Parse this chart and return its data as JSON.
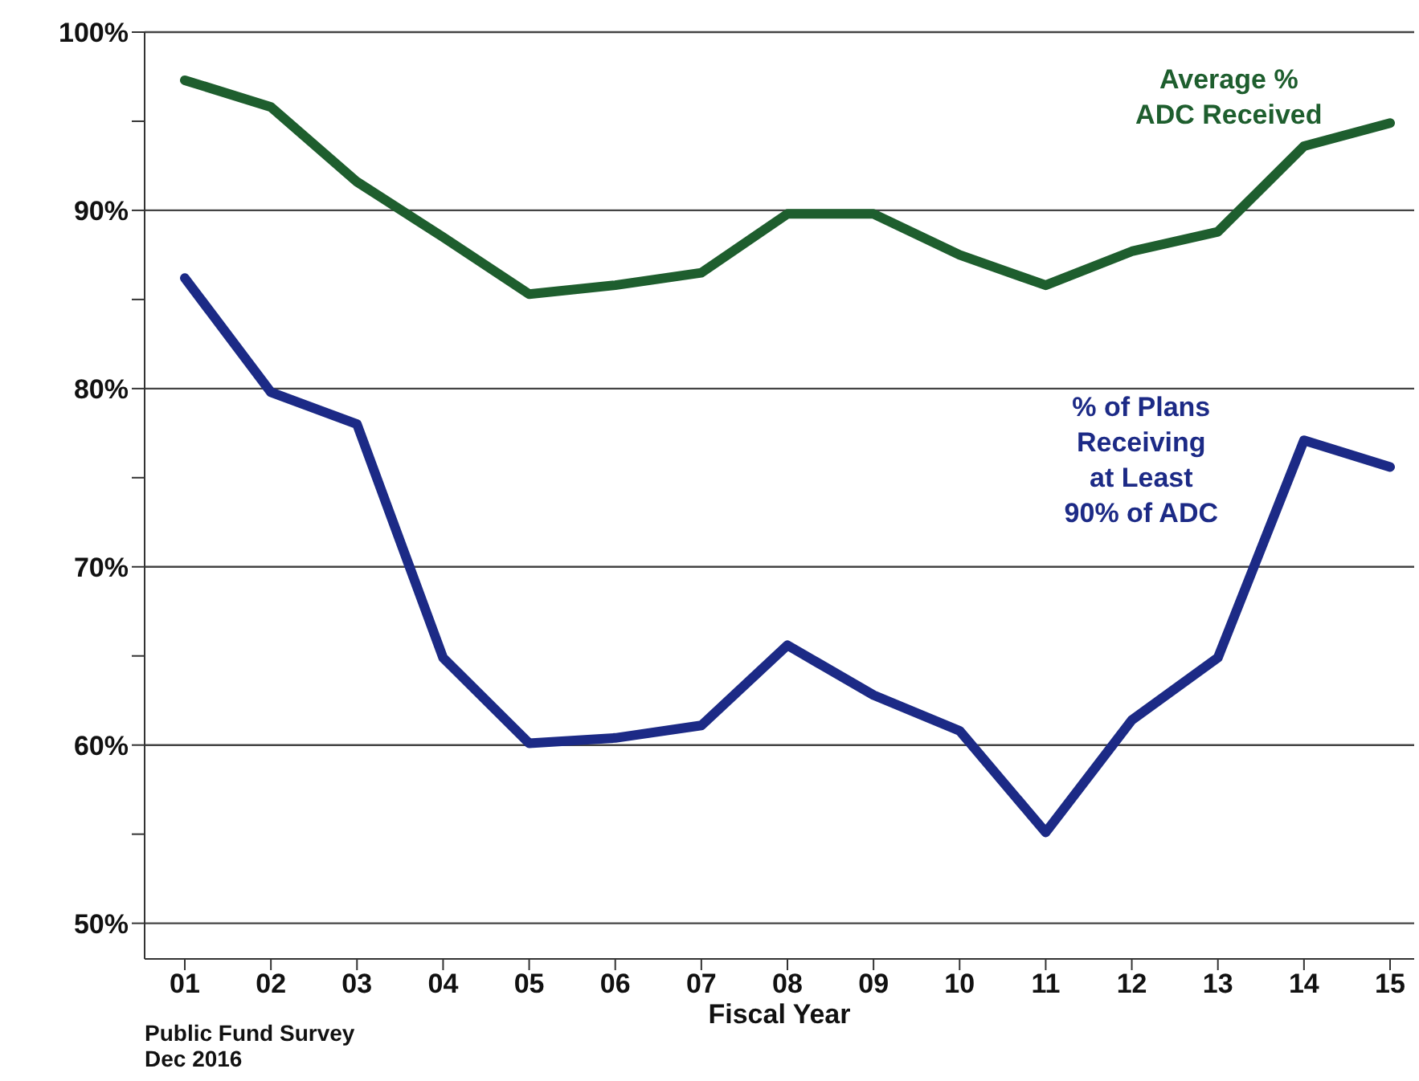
{
  "chart_data": {
    "type": "line",
    "xlabel": "Fiscal Year",
    "categories": [
      "01",
      "02",
      "03",
      "04",
      "05",
      "06",
      "07",
      "08",
      "09",
      "10",
      "11",
      "12",
      "13",
      "14",
      "15"
    ],
    "series": [
      {
        "name": "Average %\nADC Received",
        "color": "#1e5e2e",
        "values": [
          97.3,
          95.8,
          91.6,
          88.5,
          85.3,
          85.8,
          86.5,
          89.8,
          89.8,
          87.5,
          85.8,
          87.7,
          88.8,
          93.6,
          94.9
        ]
      },
      {
        "name": "% of Plans\nReceiving\nat Least\n90% of ADC",
        "color": "#1c2a86",
        "values": [
          86.2,
          79.8,
          78,
          64.9,
          60.1,
          60.4,
          61.1,
          65.6,
          62.8,
          60.8,
          55.1,
          61.4,
          64.9,
          77.1,
          75.6
        ]
      }
    ],
    "ylim": [
      48,
      100
    ],
    "yticks": [
      {
        "value": 50,
        "label": "50%"
      },
      {
        "value": 55,
        "label": null
      },
      {
        "value": 60,
        "label": "60%"
      },
      {
        "value": 65,
        "label": null
      },
      {
        "value": 70,
        "label": "70%"
      },
      {
        "value": 75,
        "label": null
      },
      {
        "value": 80,
        "label": "80%"
      },
      {
        "value": 85,
        "label": null
      },
      {
        "value": 90,
        "label": "90%"
      },
      {
        "value": 95,
        "label": null
      },
      {
        "value": 100,
        "label": "100%"
      }
    ],
    "grid": "y",
    "marker": "none",
    "line_style": "solid",
    "annotations": [
      "Public Fund Survey\nDec 2016"
    ]
  }
}
